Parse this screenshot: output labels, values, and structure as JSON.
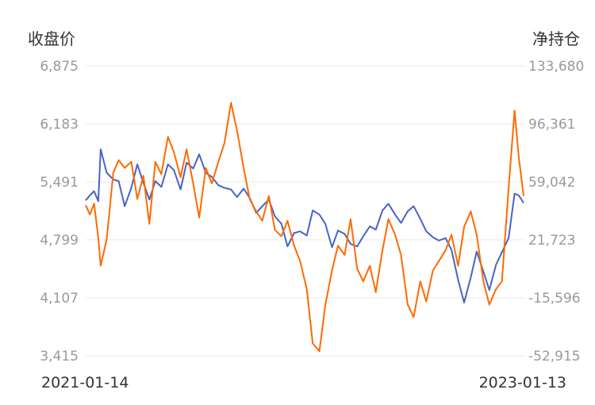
{
  "chart_data": {
    "type": "line",
    "title": "",
    "left_axis_title": "收盘价",
    "right_axis_title": "净持仓",
    "x_start": "2021-01-14",
    "x_end": "2023-01-13",
    "x_tick_labels": [
      "2021-01-14",
      "2023-01-13"
    ],
    "left_ticks": [
      "6,875",
      "6,183",
      "5,491",
      "4,799",
      "4,107",
      "3,415"
    ],
    "right_ticks": [
      "133,680",
      "96,361",
      "59,042",
      "21,723",
      "-15,596",
      "-52,915"
    ],
    "left_range": [
      3415,
      6875
    ],
    "right_range": [
      -52915,
      133680
    ],
    "grid": true,
    "colors": {
      "close": "#4a62c8",
      "net": "#ff6a00"
    },
    "series": [
      {
        "axis": "left",
        "color": "#4a62c8",
        "points": [
          [
            "2021-01-14",
            5270
          ],
          [
            "2021-01-21",
            5330
          ],
          [
            "2021-01-28",
            5380
          ],
          [
            "2021-02-04",
            5260
          ],
          [
            "2021-02-08",
            5880
          ],
          [
            "2021-02-18",
            5600
          ],
          [
            "2021-03-01",
            5520
          ],
          [
            "2021-03-10",
            5500
          ],
          [
            "2021-03-20",
            5200
          ],
          [
            "2021-03-31",
            5420
          ],
          [
            "2021-04-10",
            5700
          ],
          [
            "2021-04-20",
            5480
          ],
          [
            "2021-04-30",
            5280
          ],
          [
            "2021-05-10",
            5500
          ],
          [
            "2021-05-20",
            5430
          ],
          [
            "2021-05-31",
            5700
          ],
          [
            "2021-06-10",
            5630
          ],
          [
            "2021-06-21",
            5400
          ],
          [
            "2021-07-01",
            5720
          ],
          [
            "2021-07-12",
            5650
          ],
          [
            "2021-07-22",
            5820
          ],
          [
            "2021-08-02",
            5600
          ],
          [
            "2021-08-12",
            5550
          ],
          [
            "2021-08-23",
            5450
          ],
          [
            "2021-09-02",
            5420
          ],
          [
            "2021-09-13",
            5400
          ],
          [
            "2021-09-23",
            5310
          ],
          [
            "2021-10-04",
            5410
          ],
          [
            "2021-10-14",
            5300
          ],
          [
            "2021-10-25",
            5120
          ],
          [
            "2021-11-04",
            5200
          ],
          [
            "2021-11-15",
            5280
          ],
          [
            "2021-11-25",
            5080
          ],
          [
            "2021-12-06",
            4990
          ],
          [
            "2021-12-16",
            4720
          ],
          [
            "2021-12-27",
            4880
          ],
          [
            "2022-01-06",
            4900
          ],
          [
            "2022-01-17",
            4850
          ],
          [
            "2022-01-27",
            5150
          ],
          [
            "2022-02-07",
            5100
          ],
          [
            "2022-02-17",
            4990
          ],
          [
            "2022-02-28",
            4710
          ],
          [
            "2022-03-10",
            4910
          ],
          [
            "2022-03-21",
            4870
          ],
          [
            "2022-03-31",
            4750
          ],
          [
            "2022-04-11",
            4720
          ],
          [
            "2022-04-21",
            4840
          ],
          [
            "2022-05-02",
            4960
          ],
          [
            "2022-05-12",
            4920
          ],
          [
            "2022-05-23",
            5150
          ],
          [
            "2022-06-02",
            5230
          ],
          [
            "2022-06-13",
            5100
          ],
          [
            "2022-06-23",
            5000
          ],
          [
            "2022-07-04",
            5140
          ],
          [
            "2022-07-14",
            5200
          ],
          [
            "2022-07-25",
            5050
          ],
          [
            "2022-08-04",
            4900
          ],
          [
            "2022-08-15",
            4830
          ],
          [
            "2022-08-25",
            4790
          ],
          [
            "2022-09-05",
            4820
          ],
          [
            "2022-09-15",
            4680
          ],
          [
            "2022-09-26",
            4320
          ],
          [
            "2022-10-06",
            4050
          ],
          [
            "2022-10-17",
            4350
          ],
          [
            "2022-10-27",
            4660
          ],
          [
            "2022-11-07",
            4420
          ],
          [
            "2022-11-17",
            4200
          ],
          [
            "2022-11-28",
            4500
          ],
          [
            "2022-12-08",
            4650
          ],
          [
            "2022-12-19",
            4820
          ],
          [
            "2022-12-29",
            5350
          ],
          [
            "2023-01-05",
            5330
          ],
          [
            "2023-01-13",
            5240
          ]
        ]
      },
      {
        "axis": "right",
        "color": "#ff6a00",
        "points": [
          [
            "2021-01-14",
            44000
          ],
          [
            "2021-01-21",
            38000
          ],
          [
            "2021-01-28",
            45000
          ],
          [
            "2021-02-04",
            23000
          ],
          [
            "2021-02-08",
            5000
          ],
          [
            "2021-02-18",
            22000
          ],
          [
            "2021-03-01",
            65000
          ],
          [
            "2021-03-10",
            73000
          ],
          [
            "2021-03-20",
            68000
          ],
          [
            "2021-03-31",
            72000
          ],
          [
            "2021-04-10",
            48000
          ],
          [
            "2021-04-20",
            63000
          ],
          [
            "2021-04-30",
            32000
          ],
          [
            "2021-05-10",
            72000
          ],
          [
            "2021-05-20",
            64000
          ],
          [
            "2021-05-31",
            88000
          ],
          [
            "2021-06-10",
            78000
          ],
          [
            "2021-06-21",
            62000
          ],
          [
            "2021-07-01",
            80000
          ],
          [
            "2021-07-12",
            58000
          ],
          [
            "2021-07-22",
            36000
          ],
          [
            "2021-08-02",
            68000
          ],
          [
            "2021-08-12",
            58000
          ],
          [
            "2021-08-23",
            72000
          ],
          [
            "2021-09-02",
            84000
          ],
          [
            "2021-09-13",
            110000
          ],
          [
            "2021-09-23",
            92000
          ],
          [
            "2021-10-04",
            68000
          ],
          [
            "2021-10-14",
            48000
          ],
          [
            "2021-10-25",
            40000
          ],
          [
            "2021-11-04",
            34000
          ],
          [
            "2021-11-15",
            50000
          ],
          [
            "2021-11-25",
            28000
          ],
          [
            "2021-12-06",
            24000
          ],
          [
            "2021-12-16",
            34000
          ],
          [
            "2021-12-27",
            18000
          ],
          [
            "2022-01-06",
            8000
          ],
          [
            "2022-01-17",
            -10000
          ],
          [
            "2022-01-27",
            -45000
          ],
          [
            "2022-02-07",
            -50000
          ],
          [
            "2022-02-17",
            -20000
          ],
          [
            "2022-02-28",
            2000
          ],
          [
            "2022-03-10",
            18000
          ],
          [
            "2022-03-21",
            12000
          ],
          [
            "2022-03-31",
            35000
          ],
          [
            "2022-04-11",
            3000
          ],
          [
            "2022-04-21",
            -5000
          ],
          [
            "2022-05-02",
            5000
          ],
          [
            "2022-05-12",
            -12000
          ],
          [
            "2022-05-23",
            15000
          ],
          [
            "2022-06-02",
            35000
          ],
          [
            "2022-06-13",
            25000
          ],
          [
            "2022-06-23",
            12000
          ],
          [
            "2022-07-04",
            -20000
          ],
          [
            "2022-07-14",
            -28000
          ],
          [
            "2022-07-25",
            -5000
          ],
          [
            "2022-08-04",
            -18000
          ],
          [
            "2022-08-15",
            2000
          ],
          [
            "2022-08-25",
            8000
          ],
          [
            "2022-09-05",
            15000
          ],
          [
            "2022-09-15",
            25000
          ],
          [
            "2022-09-26",
            5000
          ],
          [
            "2022-10-06",
            30000
          ],
          [
            "2022-10-17",
            40000
          ],
          [
            "2022-10-27",
            25000
          ],
          [
            "2022-11-07",
            -5000
          ],
          [
            "2022-11-17",
            -20000
          ],
          [
            "2022-11-28",
            -10000
          ],
          [
            "2022-12-08",
            -5000
          ],
          [
            "2022-12-19",
            55000
          ],
          [
            "2022-12-29",
            105000
          ],
          [
            "2023-01-05",
            75000
          ],
          [
            "2023-01-13",
            50000
          ]
        ]
      }
    ]
  }
}
